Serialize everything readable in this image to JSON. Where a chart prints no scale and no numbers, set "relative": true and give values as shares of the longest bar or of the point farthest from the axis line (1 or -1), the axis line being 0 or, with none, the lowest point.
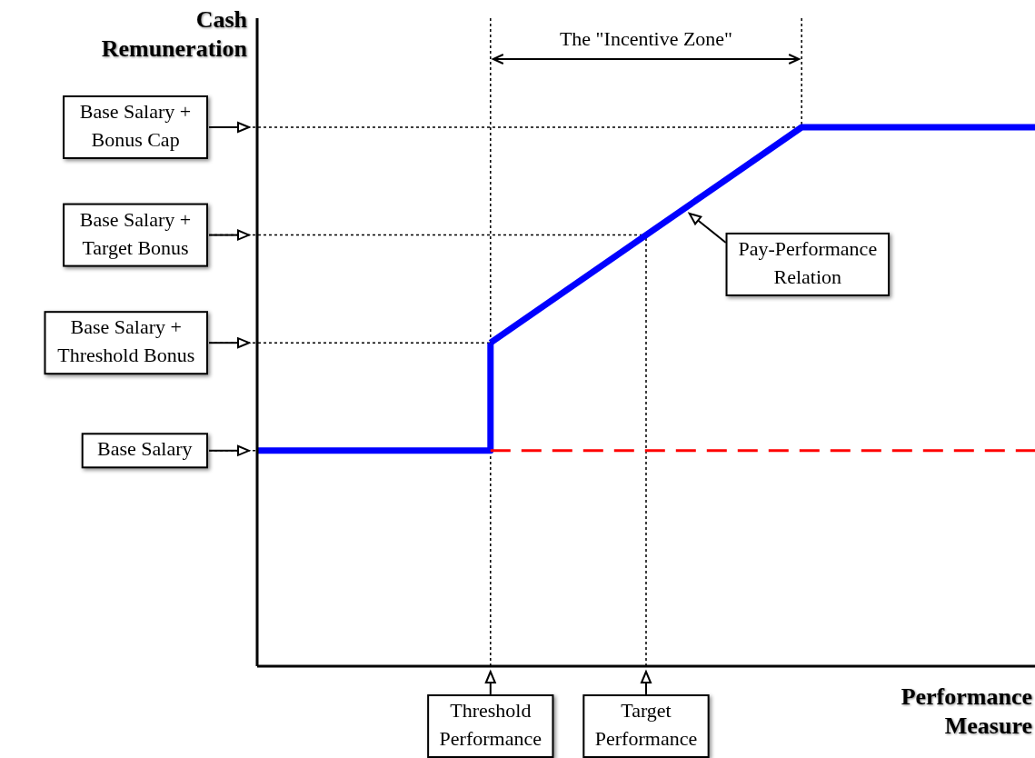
{
  "chart_data": {
    "type": "line",
    "relative": true,
    "ylabel": "Cash Remuneration",
    "xlabel": "Performance Measure",
    "line_style": "solid",
    "grid": "x",
    "categories": [
      null,
      null,
      null,
      "Threshold Performance",
      null,
      "Target Performance",
      null,
      null,
      null,
      null,
      null
    ],
    "series": [
      {
        "type": "step",
        "color": "#0000ff",
        "values": [
          0.4,
          0.4,
          0.4,
          0.6,
          null,
          null,
          null,
          null,
          null,
          null,
          null
        ]
      },
      {
        "color": "#0000ff",
        "values": [
          null,
          null,
          null,
          0.6,
          0.7,
          0.8,
          0.9,
          1,
          1,
          1,
          1
        ]
      },
      {
        "color": "#ff0000",
        "values": [
          null,
          null,
          null,
          0.4,
          0.4,
          0.4,
          0.4,
          0.4,
          0.4,
          0.4,
          0.4
        ],
        "line_style": "dashed"
      }
    ],
    "ref_lines": [
      {
        "axis": "y",
        "value": 1,
        "label": "Base Salary + Bonus Cap"
      },
      {
        "axis": "y",
        "value": 0.8,
        "label": "Base Salary + Target Bonus"
      },
      {
        "axis": "y",
        "value": 0.6,
        "label": "Base Salary + Threshold Bonus"
      },
      {
        "axis": "y",
        "value": 0.4,
        "label": "Base Salary"
      }
    ],
    "annotations": [
      "The \"Incentive Zone\"",
      "Pay-Performance Relation"
    ]
  }
}
